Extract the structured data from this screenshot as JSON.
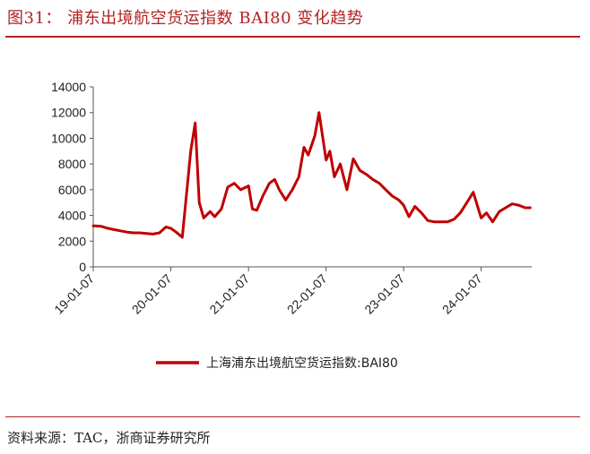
{
  "header": {
    "title": "图31：  浦东出境航空货运指数 BAI80 变化趋势"
  },
  "footer": {
    "source": "资料来源：TAC，浙商证券研究所"
  },
  "colors": {
    "accent": "#b22222",
    "series": "#c00000",
    "axis": "#555555"
  },
  "chart_data": {
    "type": "line",
    "title": "",
    "xlabel": "",
    "ylabel": "",
    "ylim": [
      0,
      14000
    ],
    "yticks": [
      0,
      2000,
      4000,
      6000,
      8000,
      10000,
      12000,
      14000
    ],
    "xticks": [
      "19-01-07",
      "20-01-07",
      "21-01-07",
      "22-01-07",
      "23-01-07",
      "24-01-07"
    ],
    "grid": false,
    "legend": "bottom",
    "series": [
      {
        "name": "上海浦东出境航空货运指数:BAI80",
        "color": "#c00000",
        "points": [
          [
            "19-01-07",
            3200
          ],
          [
            "19-02-15",
            3150
          ],
          [
            "19-03-15",
            3000
          ],
          [
            "19-04-15",
            2900
          ],
          [
            "19-05-15",
            2800
          ],
          [
            "19-06-15",
            2700
          ],
          [
            "19-07-15",
            2650
          ],
          [
            "19-08-15",
            2650
          ],
          [
            "19-09-15",
            2600
          ],
          [
            "19-10-15",
            2550
          ],
          [
            "19-11-15",
            2650
          ],
          [
            "19-12-15",
            3100
          ],
          [
            "20-01-07",
            3000
          ],
          [
            "20-02-01",
            2700
          ],
          [
            "20-03-01",
            2300
          ],
          [
            "20-03-20",
            5500
          ],
          [
            "20-04-10",
            9000
          ],
          [
            "20-05-01",
            11200
          ],
          [
            "20-05-20",
            5000
          ],
          [
            "20-06-10",
            3800
          ],
          [
            "20-07-10",
            4300
          ],
          [
            "20-08-01",
            3900
          ],
          [
            "20-09-01",
            4500
          ],
          [
            "20-10-01",
            6200
          ],
          [
            "20-11-01",
            6500
          ],
          [
            "20-12-01",
            6000
          ],
          [
            "21-01-07",
            6300
          ],
          [
            "21-01-25",
            4500
          ],
          [
            "21-02-15",
            4400
          ],
          [
            "21-03-15",
            5500
          ],
          [
            "21-04-15",
            6500
          ],
          [
            "21-05-10",
            6800
          ],
          [
            "21-06-01",
            6000
          ],
          [
            "21-07-01",
            5200
          ],
          [
            "21-08-01",
            6000
          ],
          [
            "21-09-01",
            7000
          ],
          [
            "21-09-25",
            9300
          ],
          [
            "21-10-15",
            8700
          ],
          [
            "21-11-15",
            10200
          ],
          [
            "21-12-05",
            12000
          ],
          [
            "22-01-07",
            8300
          ],
          [
            "22-01-25",
            9000
          ],
          [
            "22-02-15",
            7000
          ],
          [
            "22-03-15",
            8000
          ],
          [
            "22-04-15",
            6000
          ],
          [
            "22-05-15",
            8400
          ],
          [
            "22-06-15",
            7500
          ],
          [
            "22-07-15",
            7200
          ],
          [
            "22-08-15",
            6800
          ],
          [
            "22-09-15",
            6500
          ],
          [
            "22-10-15",
            6000
          ],
          [
            "22-11-15",
            5500
          ],
          [
            "22-12-15",
            5200
          ],
          [
            "23-01-07",
            4800
          ],
          [
            "23-02-01",
            3900
          ],
          [
            "23-03-01",
            4700
          ],
          [
            "23-04-01",
            4200
          ],
          [
            "23-05-01",
            3600
          ],
          [
            "23-06-01",
            3500
          ],
          [
            "23-07-01",
            3500
          ],
          [
            "23-08-01",
            3500
          ],
          [
            "23-09-01",
            3700
          ],
          [
            "23-10-01",
            4200
          ],
          [
            "23-11-01",
            5000
          ],
          [
            "23-12-01",
            5800
          ],
          [
            "24-01-07",
            3800
          ],
          [
            "24-02-01",
            4200
          ],
          [
            "24-03-01",
            3500
          ],
          [
            "24-04-01",
            4300
          ],
          [
            "24-05-01",
            4600
          ],
          [
            "24-06-01",
            4900
          ],
          [
            "24-07-01",
            4800
          ],
          [
            "24-08-01",
            4600
          ],
          [
            "24-08-25",
            4600
          ]
        ]
      }
    ]
  }
}
